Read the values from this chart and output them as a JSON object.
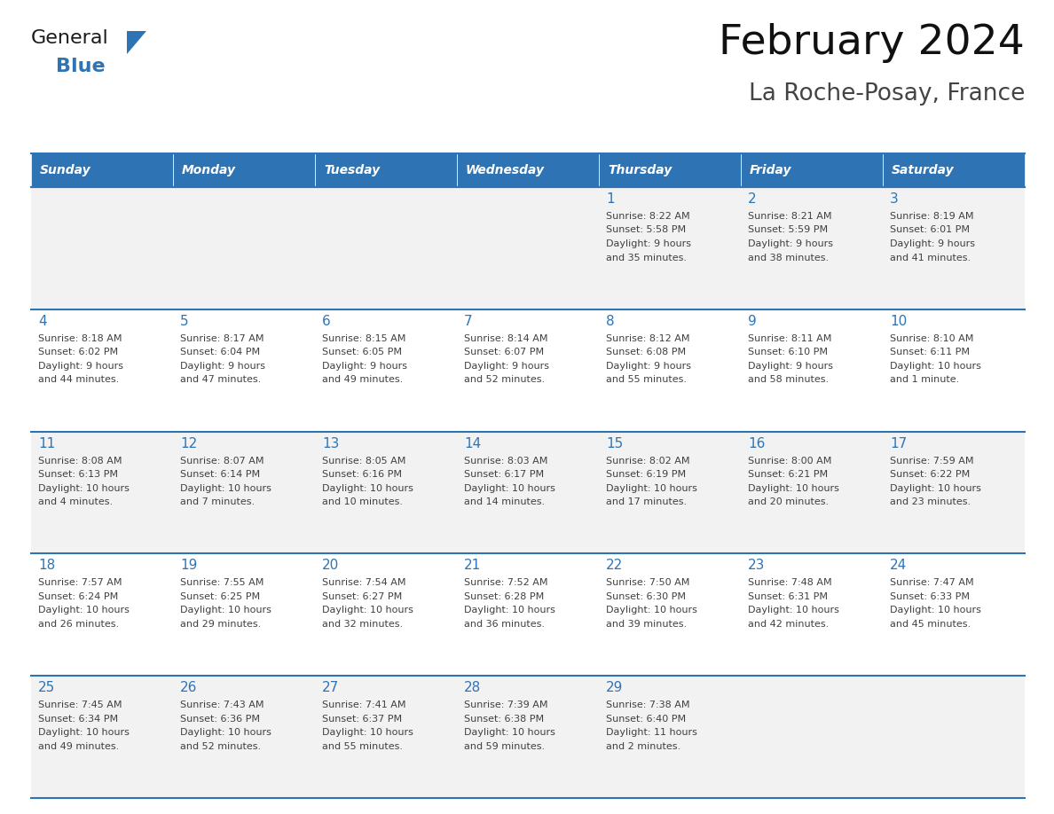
{
  "title": "February 2024",
  "subtitle": "La Roche-Posay, France",
  "header_bg": "#2E74B5",
  "header_text_color": "#FFFFFF",
  "day_names": [
    "Sunday",
    "Monday",
    "Tuesday",
    "Wednesday",
    "Thursday",
    "Friday",
    "Saturday"
  ],
  "cell_bg_light": "#F2F2F2",
  "cell_bg_white": "#FFFFFF",
  "cell_border_color": "#2E74B5",
  "text_color": "#404040",
  "number_color": "#2E74B5",
  "title_color": "#111111",
  "subtitle_color": "#444444",
  "calendar": [
    [
      {
        "day": null,
        "sunrise": null,
        "sunset": null,
        "daylight": null
      },
      {
        "day": null,
        "sunrise": null,
        "sunset": null,
        "daylight": null
      },
      {
        "day": null,
        "sunrise": null,
        "sunset": null,
        "daylight": null
      },
      {
        "day": null,
        "sunrise": null,
        "sunset": null,
        "daylight": null
      },
      {
        "day": 1,
        "sunrise": "8:22 AM",
        "sunset": "5:58 PM",
        "daylight": "9 hours\nand 35 minutes."
      },
      {
        "day": 2,
        "sunrise": "8:21 AM",
        "sunset": "5:59 PM",
        "daylight": "9 hours\nand 38 minutes."
      },
      {
        "day": 3,
        "sunrise": "8:19 AM",
        "sunset": "6:01 PM",
        "daylight": "9 hours\nand 41 minutes."
      }
    ],
    [
      {
        "day": 4,
        "sunrise": "8:18 AM",
        "sunset": "6:02 PM",
        "daylight": "9 hours\nand 44 minutes."
      },
      {
        "day": 5,
        "sunrise": "8:17 AM",
        "sunset": "6:04 PM",
        "daylight": "9 hours\nand 47 minutes."
      },
      {
        "day": 6,
        "sunrise": "8:15 AM",
        "sunset": "6:05 PM",
        "daylight": "9 hours\nand 49 minutes."
      },
      {
        "day": 7,
        "sunrise": "8:14 AM",
        "sunset": "6:07 PM",
        "daylight": "9 hours\nand 52 minutes."
      },
      {
        "day": 8,
        "sunrise": "8:12 AM",
        "sunset": "6:08 PM",
        "daylight": "9 hours\nand 55 minutes."
      },
      {
        "day": 9,
        "sunrise": "8:11 AM",
        "sunset": "6:10 PM",
        "daylight": "9 hours\nand 58 minutes."
      },
      {
        "day": 10,
        "sunrise": "8:10 AM",
        "sunset": "6:11 PM",
        "daylight": "10 hours\nand 1 minute."
      }
    ],
    [
      {
        "day": 11,
        "sunrise": "8:08 AM",
        "sunset": "6:13 PM",
        "daylight": "10 hours\nand 4 minutes."
      },
      {
        "day": 12,
        "sunrise": "8:07 AM",
        "sunset": "6:14 PM",
        "daylight": "10 hours\nand 7 minutes."
      },
      {
        "day": 13,
        "sunrise": "8:05 AM",
        "sunset": "6:16 PM",
        "daylight": "10 hours\nand 10 minutes."
      },
      {
        "day": 14,
        "sunrise": "8:03 AM",
        "sunset": "6:17 PM",
        "daylight": "10 hours\nand 14 minutes."
      },
      {
        "day": 15,
        "sunrise": "8:02 AM",
        "sunset": "6:19 PM",
        "daylight": "10 hours\nand 17 minutes."
      },
      {
        "day": 16,
        "sunrise": "8:00 AM",
        "sunset": "6:21 PM",
        "daylight": "10 hours\nand 20 minutes."
      },
      {
        "day": 17,
        "sunrise": "7:59 AM",
        "sunset": "6:22 PM",
        "daylight": "10 hours\nand 23 minutes."
      }
    ],
    [
      {
        "day": 18,
        "sunrise": "7:57 AM",
        "sunset": "6:24 PM",
        "daylight": "10 hours\nand 26 minutes."
      },
      {
        "day": 19,
        "sunrise": "7:55 AM",
        "sunset": "6:25 PM",
        "daylight": "10 hours\nand 29 minutes."
      },
      {
        "day": 20,
        "sunrise": "7:54 AM",
        "sunset": "6:27 PM",
        "daylight": "10 hours\nand 32 minutes."
      },
      {
        "day": 21,
        "sunrise": "7:52 AM",
        "sunset": "6:28 PM",
        "daylight": "10 hours\nand 36 minutes."
      },
      {
        "day": 22,
        "sunrise": "7:50 AM",
        "sunset": "6:30 PM",
        "daylight": "10 hours\nand 39 minutes."
      },
      {
        "day": 23,
        "sunrise": "7:48 AM",
        "sunset": "6:31 PM",
        "daylight": "10 hours\nand 42 minutes."
      },
      {
        "day": 24,
        "sunrise": "7:47 AM",
        "sunset": "6:33 PM",
        "daylight": "10 hours\nand 45 minutes."
      }
    ],
    [
      {
        "day": 25,
        "sunrise": "7:45 AM",
        "sunset": "6:34 PM",
        "daylight": "10 hours\nand 49 minutes."
      },
      {
        "day": 26,
        "sunrise": "7:43 AM",
        "sunset": "6:36 PM",
        "daylight": "10 hours\nand 52 minutes."
      },
      {
        "day": 27,
        "sunrise": "7:41 AM",
        "sunset": "6:37 PM",
        "daylight": "10 hours\nand 55 minutes."
      },
      {
        "day": 28,
        "sunrise": "7:39 AM",
        "sunset": "6:38 PM",
        "daylight": "10 hours\nand 59 minutes."
      },
      {
        "day": 29,
        "sunrise": "7:38 AM",
        "sunset": "6:40 PM",
        "daylight": "11 hours\nand 2 minutes."
      },
      {
        "day": null,
        "sunrise": null,
        "sunset": null,
        "daylight": null
      },
      {
        "day": null,
        "sunrise": null,
        "sunset": null,
        "daylight": null
      }
    ]
  ]
}
